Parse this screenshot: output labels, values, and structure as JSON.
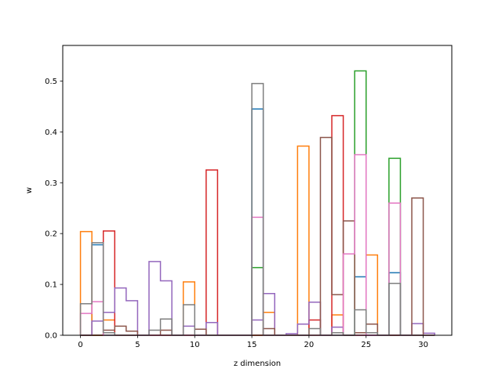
{
  "chart_data": {
    "type": "histogram-step",
    "xlabel": "z dimension",
    "ylabel": "w",
    "xlim": [
      -1.55,
      32.5
    ],
    "ylim": [
      0,
      0.57
    ],
    "xticks": [
      0,
      5,
      10,
      15,
      20,
      25,
      30
    ],
    "yticks": [
      0.0,
      0.1,
      0.2,
      0.3,
      0.4,
      0.5
    ],
    "ytick_labels": [
      "0.0",
      "0.1",
      "0.2",
      "0.3",
      "0.4",
      "0.5"
    ],
    "bin_width": 1,
    "bin_start": 0,
    "series": [
      {
        "color": "#1f77b4",
        "values": [
          0.0,
          0.178,
          0.0,
          0.0,
          0.0,
          0.0,
          0.0,
          0.0,
          0.0,
          0.0,
          0.0,
          0.0,
          0.0,
          0.0,
          0.0,
          0.445,
          0.0,
          0.0,
          0.0,
          0.0,
          0.0,
          0.0,
          0.0,
          0.0,
          0.115,
          0.0,
          0.0,
          0.123,
          0.0,
          0.0,
          0.0
        ]
      },
      {
        "color": "#ff7f0e",
        "values": [
          0.204,
          0.0,
          0.03,
          0.0,
          0.0,
          0.0,
          0.0,
          0.0,
          0.0,
          0.105,
          0.0,
          0.0,
          0.0,
          0.0,
          0.0,
          0.0,
          0.045,
          0.0,
          0.0,
          0.372,
          0.0,
          0.0,
          0.04,
          0.0,
          0.0,
          0.158,
          0.0,
          0.0,
          0.0,
          0.0,
          0.0
        ]
      },
      {
        "color": "#2ca02c",
        "values": [
          0.0,
          0.0,
          0.0,
          0.0,
          0.0,
          0.0,
          0.0,
          0.0,
          0.0,
          0.0,
          0.0,
          0.0,
          0.0,
          0.0,
          0.0,
          0.133,
          0.0,
          0.0,
          0.0,
          0.0,
          0.0,
          0.0,
          0.0,
          0.0,
          0.52,
          0.0,
          0.0,
          0.348,
          0.0,
          0.0,
          0.0
        ]
      },
      {
        "color": "#d62728",
        "values": [
          0.0,
          0.0,
          0.205,
          0.0,
          0.0,
          0.0,
          0.0,
          0.0,
          0.0,
          0.0,
          0.0,
          0.325,
          0.0,
          0.0,
          0.0,
          0.0,
          0.0,
          0.0,
          0.0,
          0.0,
          0.03,
          0.0,
          0.432,
          0.0,
          0.0,
          0.0,
          0.0,
          0.0,
          0.0,
          0.0,
          0.0
        ]
      },
      {
        "color": "#9467bd",
        "values": [
          0.0,
          0.028,
          0.045,
          0.093,
          0.068,
          0.0,
          0.145,
          0.107,
          0.0,
          0.018,
          0.0,
          0.025,
          0.0,
          0.0,
          0.0,
          0.03,
          0.082,
          0.0,
          0.003,
          0.022,
          0.065,
          0.0,
          0.016,
          0.0,
          0.0,
          0.0,
          0.0,
          0.0,
          0.0,
          0.023,
          0.004
        ]
      },
      {
        "color": "#8c564b",
        "values": [
          0.0,
          0.0,
          0.01,
          0.018,
          0.008,
          0.0,
          0.0,
          0.01,
          0.0,
          0.0,
          0.012,
          0.0,
          0.0,
          0.0,
          0.0,
          0.0,
          0.013,
          0.0,
          0.0,
          0.0,
          0.0,
          0.389,
          0.08,
          0.225,
          0.005,
          0.022,
          0.0,
          0.0,
          0.0,
          0.27,
          0.0
        ]
      },
      {
        "color": "#e377c2",
        "values": [
          0.043,
          0.066,
          0.0,
          0.0,
          0.0,
          0.0,
          0.0,
          0.0,
          0.0,
          0.0,
          0.0,
          0.0,
          0.0,
          0.0,
          0.0,
          0.232,
          0.0,
          0.0,
          0.0,
          0.0,
          0.0,
          0.0,
          0.0,
          0.16,
          0.355,
          0.0,
          0.0,
          0.26,
          0.0,
          0.0,
          0.0
        ]
      },
      {
        "color": "#7f7f7f",
        "values": [
          0.062,
          0.182,
          0.005,
          0.0,
          0.0,
          0.0,
          0.01,
          0.032,
          0.0,
          0.06,
          0.0,
          0.0,
          0.0,
          0.0,
          0.0,
          0.495,
          0.0,
          0.0,
          0.0,
          0.0,
          0.013,
          0.0,
          0.005,
          0.0,
          0.05,
          0.005,
          0.0,
          0.102,
          0.0,
          0.0,
          0.0
        ]
      }
    ]
  }
}
